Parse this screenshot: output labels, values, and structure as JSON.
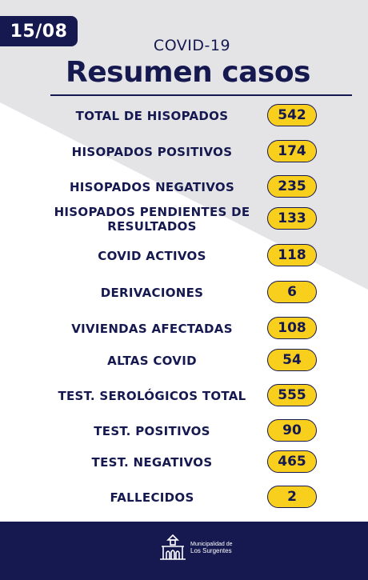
{
  "date": "15/08",
  "subtitle": "COVID-19",
  "title": "Resumen casos",
  "rows": [
    {
      "label": "TOTAL DE HISOPADOS",
      "value": "542"
    },
    {
      "label": "HISOPADOS POSITIVOS",
      "value": "174"
    },
    {
      "label": "HISOPADOS NEGATIVOS",
      "value": "235"
    },
    {
      "label": "HISOPADOS PENDIENTES DE RESULTADOS",
      "value": "133"
    },
    {
      "label": "COVID ACTIVOS",
      "value": "118"
    },
    {
      "label": "DERIVACIONES",
      "value": "6"
    },
    {
      "label": "VIVIENDAS AFECTADAS",
      "value": "108"
    },
    {
      "label": "ALTAS COVID",
      "value": "54"
    },
    {
      "label": "TEST. SEROLÓGICOS TOTAL",
      "value": "555"
    },
    {
      "label": "TEST. POSITIVOS",
      "value": "90"
    },
    {
      "label": "TEST. NEGATIVOS",
      "value": "465"
    },
    {
      "label": "FALLECIDOS",
      "value": "2"
    }
  ],
  "footer": {
    "logo_icon": "municipal-building-icon",
    "logo_line1": "Municipalidad de",
    "logo_line2": "Los Surgentes"
  },
  "colors": {
    "navy": "#16194f",
    "yellow": "#f9cf1e",
    "background": "#e9e9ec"
  }
}
